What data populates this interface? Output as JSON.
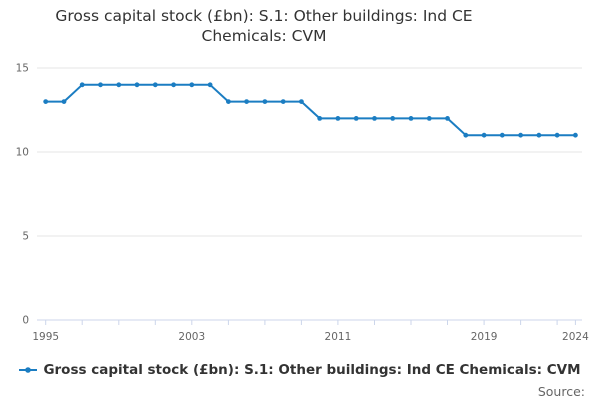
{
  "title": "Gross capital stock (£bn): S.1: Other buildings: Ind CE Chemicals: CVM",
  "legend": {
    "label": "Gross capital stock (£bn): S.1: Other buildings: Ind CE Chemicals: CVM"
  },
  "source_label": "Source:",
  "colors": {
    "series": "#1b7dc2",
    "grid": "#e6e6e6",
    "axis_line": "#ccd6eb",
    "axis_text": "#666666",
    "title_text": "#333333",
    "legend_text": "#333333"
  },
  "chart_data": {
    "type": "line",
    "title": "Gross capital stock (£bn): S.1: Other buildings: Ind CE Chemicals: CVM",
    "xlabel": "",
    "ylabel": "",
    "x": [
      1995,
      1996,
      1997,
      1998,
      1999,
      2000,
      2001,
      2002,
      2003,
      2004,
      2005,
      2006,
      2007,
      2008,
      2009,
      2010,
      2011,
      2012,
      2013,
      2014,
      2015,
      2016,
      2017,
      2018,
      2019,
      2020,
      2021,
      2022,
      2023,
      2024
    ],
    "series": [
      {
        "name": "Gross capital stock (£bn): S.1: Other buildings: Ind CE Chemicals: CVM",
        "values": [
          13,
          13,
          14,
          14,
          14,
          14,
          14,
          14,
          14,
          14,
          13,
          13,
          13,
          13,
          13,
          12,
          12,
          12,
          12,
          12,
          12,
          12,
          12,
          11,
          11,
          11,
          11,
          11,
          11,
          11
        ]
      }
    ],
    "ylim": [
      0,
      15
    ],
    "yticks": [
      0,
      5,
      10,
      15
    ],
    "xticks": [
      1995,
      2003,
      2011,
      2019,
      2024
    ],
    "minor_xtick_step": 2,
    "grid": true,
    "legend_position": "bottom",
    "marker": "dot"
  }
}
